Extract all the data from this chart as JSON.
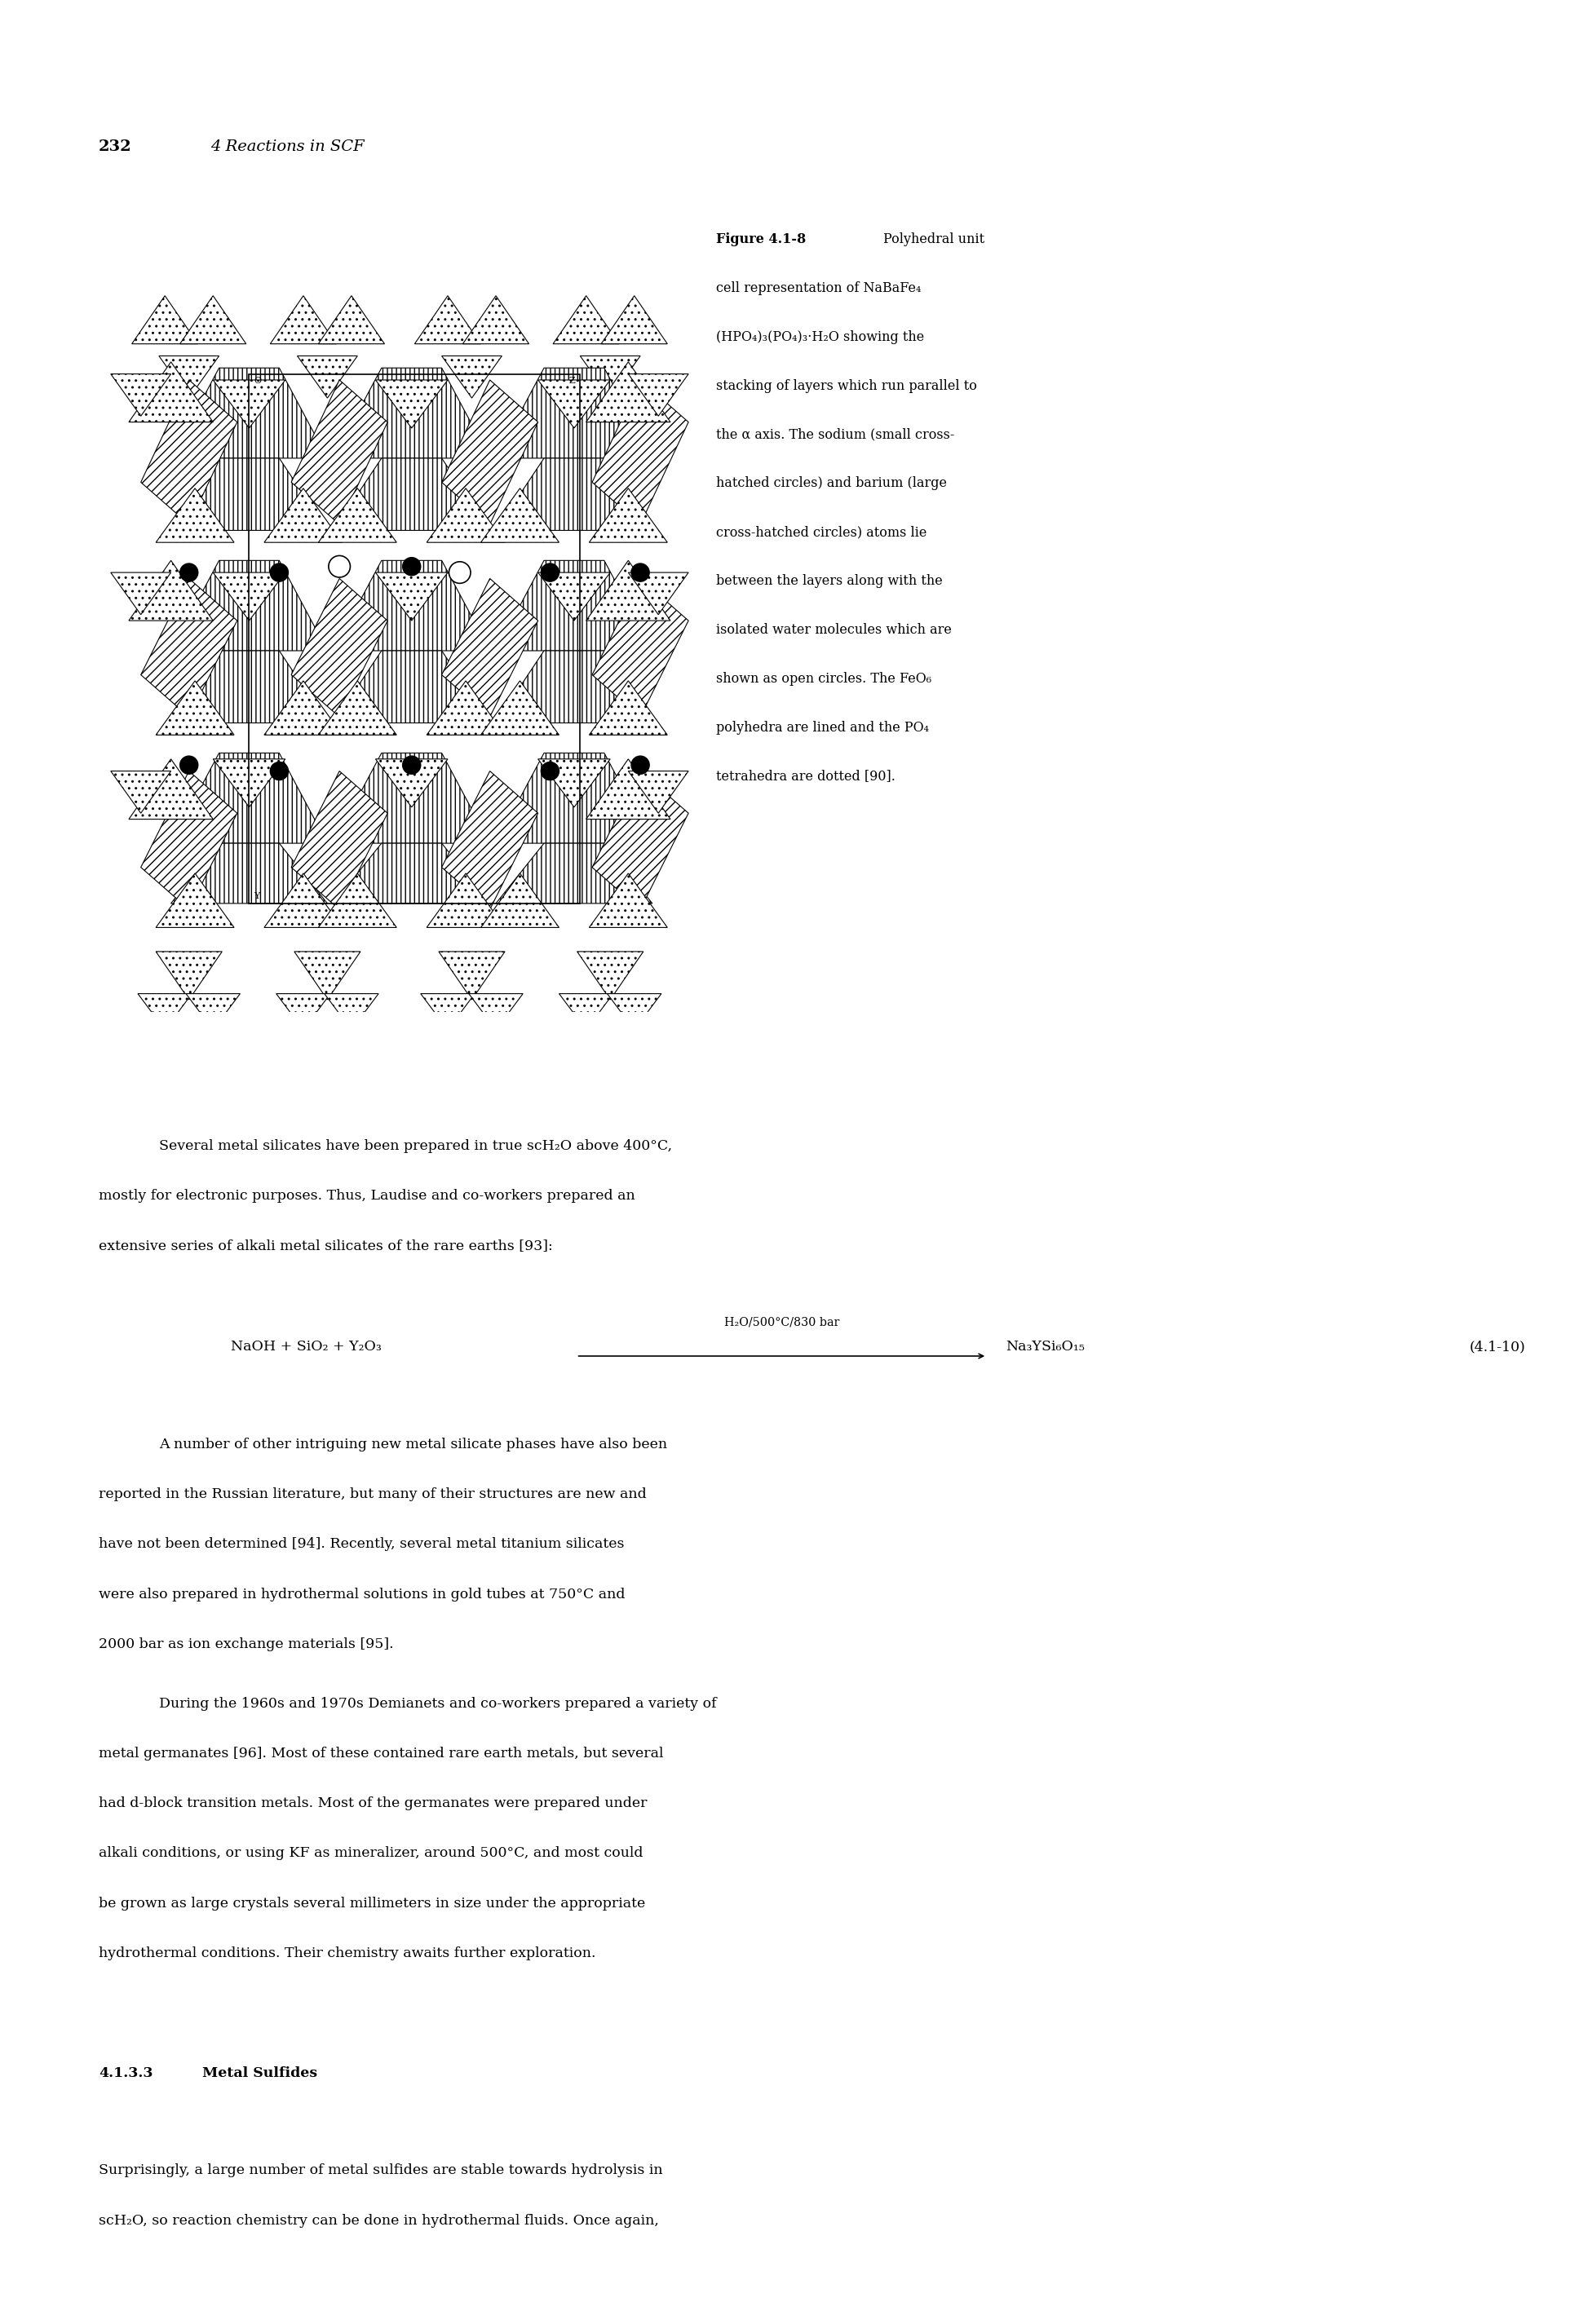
{
  "page_width": 19.52,
  "page_height": 28.5,
  "bg_color": "#ffffff",
  "header_number": "232",
  "header_title": "4 Reactions in SCF",
  "body_fs": 12.5,
  "caption_fs": 11.5,
  "header_fs": 14
}
